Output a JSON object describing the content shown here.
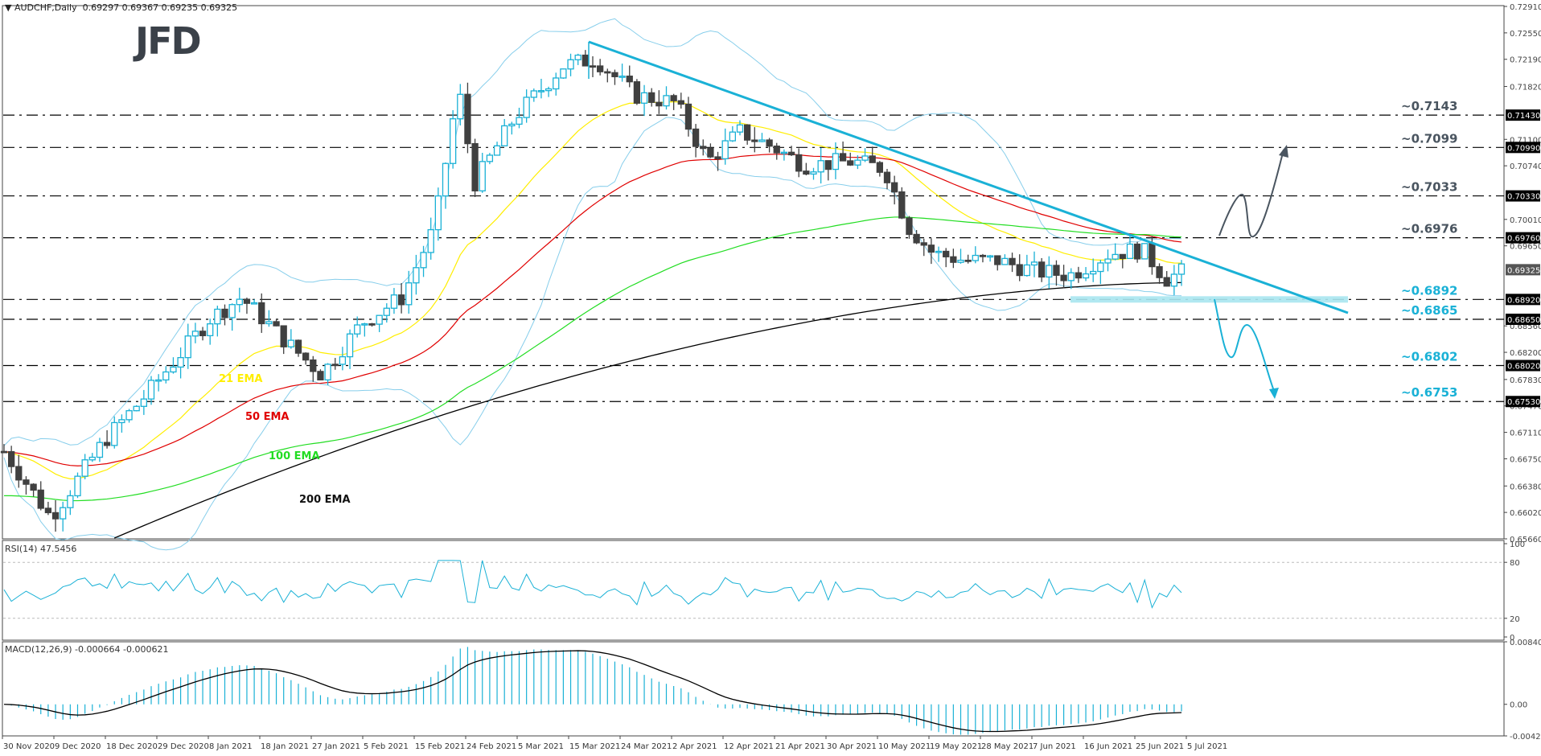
{
  "header": {
    "symbol": "AUDCHF,Daily",
    "ohlc": "0.69297 0.69367 0.69235 0.69325",
    "logo": "JFD"
  },
  "colors": {
    "bull": "#1ab1d6",
    "bear": "#404040",
    "ema21": "#ffee00",
    "ema50": "#e00000",
    "ema100": "#22dd22",
    "ema200": "#000000",
    "bollinger": "#87ceeb",
    "trendline": "#1ab1d6",
    "support_zone": "#a8e6ef",
    "bullish_arrow": "#4a5560",
    "bearish_arrow": "#1ab1d6",
    "rsi": "#1ab1d6",
    "macd_hist": "#1ab1d6",
    "macd_signal": "#000000"
  },
  "labels": {
    "ema21": "21 EMA",
    "ema50": "50 EMA",
    "ema100": "100 EMA",
    "ema200": "200 EMA",
    "rsi": "RSI(14) 47.5456",
    "macd": "MACD(12,26,9) -0.000664 -0.000621"
  },
  "chart_data": [
    {
      "type": "candlestick",
      "title": "AUDCHF, Daily",
      "ohlc_last": {
        "open": 0.69297,
        "high": 0.69367,
        "low": 0.69235,
        "close": 0.69325
      },
      "y_ticks": [
        "0.72910",
        "0.72550",
        "0.72190",
        "0.71820",
        "0.71100",
        "0.70740",
        "0.70010",
        "0.69650",
        "0.68560",
        "0.68200",
        "0.67830",
        "0.67470",
        "0.67110",
        "0.66750",
        "0.66380",
        "0.66020",
        "0.65660"
      ],
      "ylim": [
        0.6566,
        0.7291
      ],
      "x_ticks": [
        "30 Nov 2020",
        "9 Dec 2020",
        "18 Dec 2020",
        "29 Dec 2020",
        "8 Jan 2021",
        "18 Jan 2021",
        "27 Jan 2021",
        "5 Feb 2021",
        "15 Feb 2021",
        "24 Feb 2021",
        "5 Mar 2021",
        "15 Mar 2021",
        "24 Mar 2021",
        "2 Apr 2021",
        "12 Apr 2021",
        "21 Apr 2021",
        "30 Apr 2021",
        "10 May 2021",
        "19 May 2021",
        "28 May 2021",
        "7 Jun 2021",
        "16 Jun 2021",
        "25 Jun 2021",
        "5 Jul 2021"
      ],
      "current_price_label": "0.69325",
      "horizontal_levels": [
        {
          "value": 0.7143,
          "axis_label": "0.71430",
          "annotation": "~0.7143",
          "color": "#4a5560"
        },
        {
          "value": 0.7099,
          "axis_label": "0.70990",
          "annotation": "~0.7099",
          "color": "#4a5560"
        },
        {
          "value": 0.7033,
          "axis_label": "0.70330",
          "annotation": "~0.7033",
          "color": "#4a5560"
        },
        {
          "value": 0.6976,
          "axis_label": "0.69760",
          "annotation": "~0.6976",
          "color": "#4a5560"
        },
        {
          "value": 0.6892,
          "axis_label": "0.68920",
          "annotation": "~0.6892",
          "color": "#1ab1d6"
        },
        {
          "value": 0.6865,
          "axis_label": "0.68650",
          "annotation": "~0.6865",
          "color": "#1ab1d6"
        },
        {
          "value": 0.6802,
          "axis_label": "0.68020",
          "annotation": "~0.6802",
          "color": "#1ab1d6"
        },
        {
          "value": 0.6753,
          "axis_label": "0.67530",
          "annotation": "~0.6753",
          "color": "#1ab1d6"
        }
      ],
      "indicators": [
        "21 EMA",
        "50 EMA",
        "100 EMA",
        "200 EMA",
        "Bollinger Bands"
      ],
      "annotations": [
        "Descending trendline from mid-March 2021 high",
        "Support zone ~0.6892",
        "Bullish path arrow to ~0.7099",
        "Bearish path arrow to ~0.6753"
      ]
    },
    {
      "type": "line",
      "title": "RSI(14) 47.5456",
      "ylim": [
        0,
        100
      ],
      "y_ticks": [
        "100",
        "80",
        "20",
        "0"
      ],
      "levels": [
        80,
        20
      ],
      "last_value": 47.5456
    },
    {
      "type": "bar",
      "title": "MACD(12,26,9) -0.000664 -0.000621",
      "ylim": [
        -0.004242,
        0.008402
      ],
      "y_ticks": [
        "0.008402",
        "0.00",
        "-0.004242"
      ],
      "macd": -0.000664,
      "signal": -0.000621
    }
  ]
}
